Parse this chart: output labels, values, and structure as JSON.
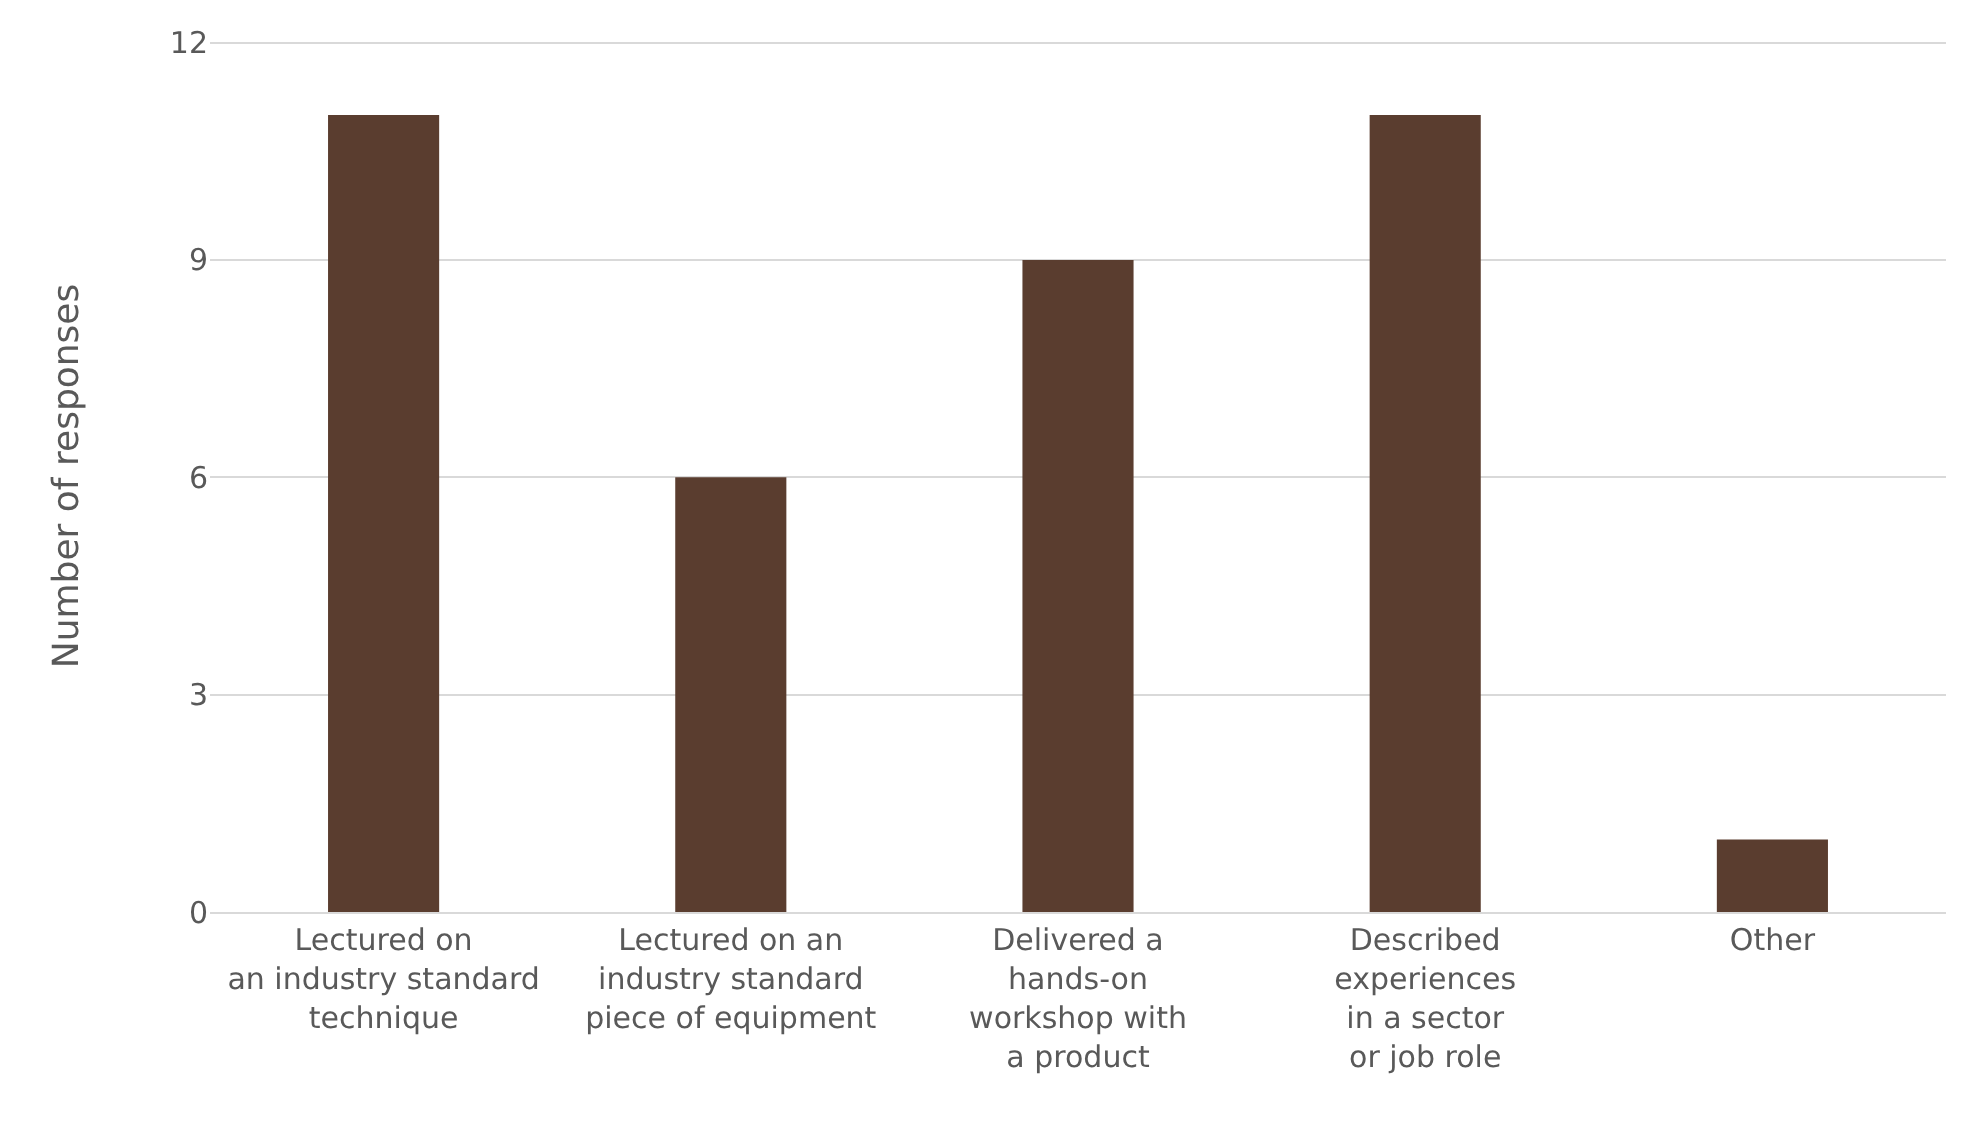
{
  "chart_data": {
    "type": "bar",
    "ylabel": "Number of responses",
    "categories": [
      "Lectured on\nan industry standard\ntechnique",
      "Lectured on an\nindustry standard\npiece of equipment",
      "Delivered a\nhands-on\nworkshop with\na product",
      "Described\nexperiences\nin a sector\nor job role",
      "Other"
    ],
    "values": [
      11,
      6,
      9,
      11,
      1
    ],
    "color": "#5a3d2f",
    "ylim": [
      0,
      12
    ],
    "yticks": [
      0,
      3,
      6,
      9,
      12
    ],
    "grid": "y"
  }
}
